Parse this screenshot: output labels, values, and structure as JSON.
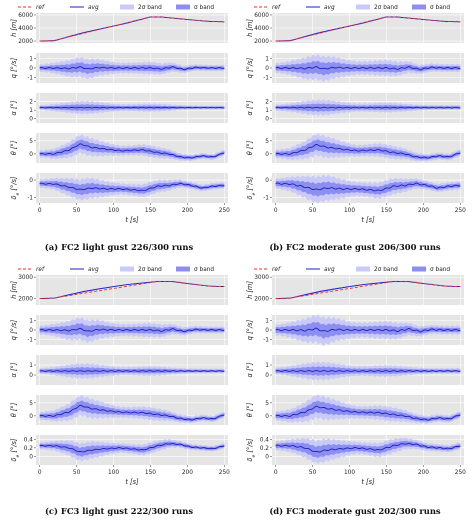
{
  "legend": {
    "ref": "ref",
    "avg": "avg",
    "band2": "2σ band",
    "band1": "σ band"
  },
  "colors": {
    "ref": "#e8322b",
    "avg": "#1c1fc2",
    "band2": "#c9caf8",
    "band1": "#8d8ff0",
    "plot_bg": "#e5e5e5",
    "grid": "#ffffff"
  },
  "captions": [
    "(a) FC2 light gust 226/300 runs",
    "(b) FC2 moderate gust 206/300 runs",
    "(c) FC3 light gust 222/300 runs",
    "(d) FC3 moderate gust 202/300 runs"
  ],
  "chart_data": [
    {
      "id": "a",
      "type": "line",
      "xlabel": "t [s]",
      "xlim": [
        -5,
        255
      ],
      "xticks": [
        0,
        50,
        100,
        150,
        200,
        250
      ],
      "subplots": [
        {
          "ylabel": "h [m]",
          "ylim": [
            1700,
            6300
          ],
          "yticks": [
            2000,
            4000,
            6000
          ],
          "ref": {
            "t": [
              0,
              20,
              150,
              165,
              230,
              250
            ],
            "y": [
              2000,
              2100,
              5700,
              5700,
              5000,
              4950
            ]
          },
          "avg": {
            "t": [
              0,
              20,
              40,
              60,
              80,
              100,
              120,
              150,
              165,
              200,
              230,
              250
            ],
            "y": [
              2000,
              2050,
              2700,
              3300,
              3800,
              4300,
              4800,
              5700,
              5680,
              5300,
              5000,
              4950
            ]
          },
          "sigma": 40
        },
        {
          "ylabel": "q [°/s]",
          "ylim": [
            -1.6,
            1.6
          ],
          "yticks": [
            -1,
            0,
            1
          ],
          "avg": {
            "t": [
              0,
              20,
              40,
              55,
              65,
              80,
              100,
              120,
              150,
              165,
              180,
              195,
              210,
              230,
              250
            ],
            "y": [
              0,
              0,
              -0.05,
              0.1,
              -0.1,
              0.05,
              0,
              0,
              0,
              -0.1,
              0.1,
              -0.15,
              0.05,
              0,
              0
            ]
          },
          "sigma": 0.35
        },
        {
          "ylabel": "α [°]",
          "ylim": [
            -0.5,
            3
          ],
          "yticks": [
            0,
            1,
            2
          ],
          "avg": {
            "t": [
              0,
              50,
              100,
              150,
              200,
              250
            ],
            "y": [
              1.3,
              1.3,
              1.3,
              1.3,
              1.3,
              1.3
            ]
          },
          "sigma": 0.25
        },
        {
          "ylabel": "θ [°]",
          "ylim": [
            -3.5,
            8
          ],
          "yticks": [
            0,
            5
          ],
          "avg": {
            "t": [
              0,
              20,
              40,
              55,
              70,
              90,
              110,
              140,
              160,
              175,
              190,
              205,
              220,
              235,
              250
            ],
            "y": [
              0,
              0,
              1.5,
              3.8,
              2.5,
              1.8,
              1.2,
              1.5,
              0.5,
              0,
              -1.2,
              -1.5,
              -0.8,
              -1.2,
              0.5
            ]
          },
          "sigma": 1.2
        },
        {
          "ylabel": "δ_e [°/s]",
          "ylim": [
            -1.3,
            0.4
          ],
          "yticks": [
            -1,
            0
          ],
          "avg": {
            "t": [
              0,
              20,
              40,
              55,
              70,
              90,
              110,
              140,
              160,
              175,
              190,
              205,
              220,
              235,
              250
            ],
            "y": [
              -0.2,
              -0.22,
              -0.4,
              -0.55,
              -0.45,
              -0.5,
              -0.5,
              -0.6,
              -0.35,
              -0.3,
              -0.2,
              -0.3,
              -0.45,
              -0.35,
              -0.3
            ]
          },
          "sigma": 0.2
        }
      ]
    },
    {
      "id": "b",
      "type": "line",
      "xlabel": "t [s]",
      "xlim": [
        -5,
        255
      ],
      "xticks": [
        0,
        50,
        100,
        150,
        200,
        250
      ],
      "subplots": [
        {
          "ylabel": "h [m]",
          "ylim": [
            1700,
            6300
          ],
          "yticks": [
            2000,
            4000,
            6000
          ],
          "ref": {
            "t": [
              0,
              20,
              150,
              165,
              230,
              250
            ],
            "y": [
              2000,
              2100,
              5700,
              5700,
              5000,
              4950
            ]
          },
          "avg": {
            "t": [
              0,
              20,
              40,
              60,
              80,
              100,
              120,
              150,
              165,
              200,
              230,
              250
            ],
            "y": [
              2000,
              2050,
              2700,
              3300,
              3800,
              4300,
              4800,
              5700,
              5680,
              5300,
              5000,
              4950
            ]
          },
          "sigma": 50
        },
        {
          "ylabel": "q [°/s]",
          "ylim": [
            -1.6,
            1.6
          ],
          "yticks": [
            -1,
            0,
            1
          ],
          "avg": {
            "t": [
              0,
              20,
              40,
              55,
              65,
              80,
              100,
              120,
              150,
              165,
              180,
              195,
              210,
              230,
              250
            ],
            "y": [
              0,
              0,
              -0.05,
              0.1,
              -0.1,
              0.05,
              0,
              0,
              0,
              -0.1,
              0.1,
              -0.15,
              0.05,
              0,
              0
            ]
          },
          "sigma": 0.45
        },
        {
          "ylabel": "α [°]",
          "ylim": [
            -0.5,
            3
          ],
          "yticks": [
            0,
            1,
            2
          ],
          "avg": {
            "t": [
              0,
              50,
              100,
              150,
              200,
              250
            ],
            "y": [
              1.3,
              1.3,
              1.3,
              1.3,
              1.3,
              1.3
            ]
          },
          "sigma": 0.3
        },
        {
          "ylabel": "θ [°]",
          "ylim": [
            -3.5,
            8
          ],
          "yticks": [
            0,
            5
          ],
          "avg": {
            "t": [
              0,
              20,
              40,
              55,
              70,
              90,
              110,
              140,
              160,
              175,
              190,
              205,
              220,
              235,
              250
            ],
            "y": [
              0,
              0,
              1.5,
              3.5,
              2.5,
              1.8,
              1.2,
              1.5,
              0.5,
              0,
              -1.2,
              -1.5,
              -0.8,
              -1.2,
              0.5
            ]
          },
          "sigma": 1.4
        },
        {
          "ylabel": "δ_e [°/s]",
          "ylim": [
            -1.3,
            0.4
          ],
          "yticks": [
            -1,
            0
          ],
          "avg": {
            "t": [
              0,
              20,
              40,
              55,
              70,
              90,
              110,
              140,
              160,
              175,
              190,
              205,
              220,
              235,
              250
            ],
            "y": [
              -0.2,
              -0.22,
              -0.4,
              -0.55,
              -0.45,
              -0.5,
              -0.5,
              -0.6,
              -0.35,
              -0.3,
              -0.2,
              -0.3,
              -0.45,
              -0.35,
              -0.3
            ]
          },
          "sigma": 0.25
        }
      ]
    },
    {
      "id": "c",
      "type": "line",
      "xlabel": "t [s]",
      "xlim": [
        -5,
        255
      ],
      "xticks": [
        0,
        50,
        100,
        150,
        200,
        250
      ],
      "subplots": [
        {
          "ylabel": "h [m]",
          "ylim": [
            1700,
            3100
          ],
          "yticks": [
            2000,
            3000
          ],
          "ref": {
            "t": [
              0,
              20,
              160,
              180,
              230,
              250
            ],
            "y": [
              2000,
              2030,
              2800,
              2800,
              2580,
              2560
            ]
          },
          "avg": {
            "t": [
              0,
              20,
              40,
              60,
              80,
              100,
              120,
              160,
              180,
              200,
              230,
              250
            ],
            "y": [
              2000,
              2020,
              2180,
              2330,
              2450,
              2560,
              2660,
              2800,
              2790,
              2700,
              2580,
              2560
            ]
          },
          "sigma": 15
        },
        {
          "ylabel": "q [°/s]",
          "ylim": [
            -1.6,
            1.6
          ],
          "yticks": [
            -1,
            0,
            1
          ],
          "avg": {
            "t": [
              0,
              20,
              40,
              55,
              65,
              80,
              100,
              120,
              150,
              165,
              180,
              195,
              210,
              230,
              250
            ],
            "y": [
              0,
              0,
              -0.05,
              0.15,
              -0.15,
              0.05,
              0,
              0,
              0,
              -0.1,
              0.1,
              -0.15,
              0.05,
              0,
              0
            ]
          },
          "sigma": 0.4
        },
        {
          "ylabel": "α [°]",
          "ylim": [
            -1,
            2
          ],
          "yticks": [
            0,
            1
          ],
          "avg": {
            "t": [
              0,
              50,
              100,
              150,
              200,
              250
            ],
            "y": [
              0.4,
              0.4,
              0.4,
              0.4,
              0.4,
              0.4
            ]
          },
          "sigma": 0.25
        },
        {
          "ylabel": "θ [°]",
          "ylim": [
            -3.5,
            8
          ],
          "yticks": [
            0,
            5
          ],
          "avg": {
            "t": [
              0,
              20,
              40,
              55,
              70,
              90,
              110,
              140,
              160,
              175,
              190,
              205,
              220,
              235,
              250
            ],
            "y": [
              0,
              0,
              1.5,
              4.0,
              2.8,
              2.0,
              1.4,
              1.2,
              0.5,
              0,
              -1.0,
              -1.5,
              -0.8,
              -1.2,
              0.5
            ]
          },
          "sigma": 1.3
        },
        {
          "ylabel": "δ_e [°/s]",
          "ylim": [
            -0.2,
            0.5
          ],
          "yticks": [
            0.0,
            0.2,
            0.4
          ],
          "avg": {
            "t": [
              0,
              20,
              40,
              55,
              70,
              90,
              110,
              140,
              160,
              175,
              190,
              205,
              220,
              235,
              250
            ],
            "y": [
              0.25,
              0.25,
              0.2,
              0.1,
              0.15,
              0.18,
              0.2,
              0.15,
              0.25,
              0.3,
              0.28,
              0.22,
              0.2,
              0.18,
              0.25
            ]
          },
          "sigma": 0.07
        }
      ]
    },
    {
      "id": "d",
      "type": "line",
      "xlabel": "t [s]",
      "xlim": [
        -5,
        255
      ],
      "xticks": [
        0,
        50,
        100,
        150,
        200,
        250
      ],
      "subplots": [
        {
          "ylabel": "h [m]",
          "ylim": [
            1700,
            3100
          ],
          "yticks": [
            2000,
            3000
          ],
          "ref": {
            "t": [
              0,
              20,
              160,
              180,
              230,
              250
            ],
            "y": [
              2000,
              2030,
              2800,
              2800,
              2580,
              2560
            ]
          },
          "avg": {
            "t": [
              0,
              20,
              40,
              60,
              80,
              100,
              120,
              160,
              180,
              200,
              230,
              250
            ],
            "y": [
              2000,
              2020,
              2180,
              2330,
              2450,
              2560,
              2660,
              2800,
              2790,
              2700,
              2580,
              2560
            ]
          },
          "sigma": 18
        },
        {
          "ylabel": "q [°/s]",
          "ylim": [
            -1.6,
            1.6
          ],
          "yticks": [
            -1,
            0,
            1
          ],
          "avg": {
            "t": [
              0,
              20,
              40,
              55,
              65,
              80,
              100,
              120,
              150,
              165,
              180,
              195,
              210,
              230,
              250
            ],
            "y": [
              0,
              0,
              -0.05,
              0.15,
              -0.15,
              0.05,
              0,
              0,
              0,
              -0.1,
              0.1,
              -0.15,
              0.05,
              0,
              0
            ]
          },
          "sigma": 0.5
        },
        {
          "ylabel": "α [°]",
          "ylim": [
            -1,
            2
          ],
          "yticks": [
            0,
            1
          ],
          "avg": {
            "t": [
              0,
              50,
              100,
              150,
              200,
              250
            ],
            "y": [
              0.4,
              0.4,
              0.4,
              0.4,
              0.4,
              0.4
            ]
          },
          "sigma": 0.3
        },
        {
          "ylabel": "θ [°]",
          "ylim": [
            -3.5,
            8
          ],
          "yticks": [
            0,
            5
          ],
          "avg": {
            "t": [
              0,
              20,
              40,
              55,
              70,
              90,
              110,
              140,
              160,
              175,
              190,
              205,
              220,
              235,
              250
            ],
            "y": [
              0,
              0,
              1.5,
              3.6,
              2.8,
              2.0,
              1.4,
              1.2,
              0.5,
              0,
              -1.0,
              -1.5,
              -0.8,
              -1.2,
              0.5
            ]
          },
          "sigma": 1.5
        },
        {
          "ylabel": "δ_e [°/s]",
          "ylim": [
            -0.2,
            0.5
          ],
          "yticks": [
            0.0,
            0.2,
            0.4
          ],
          "avg": {
            "t": [
              0,
              20,
              40,
              55,
              70,
              90,
              110,
              140,
              160,
              175,
              190,
              205,
              220,
              235,
              250
            ],
            "y": [
              0.25,
              0.25,
              0.2,
              0.1,
              0.15,
              0.18,
              0.2,
              0.15,
              0.25,
              0.3,
              0.28,
              0.22,
              0.2,
              0.18,
              0.25
            ]
          },
          "sigma": 0.09
        }
      ]
    }
  ]
}
